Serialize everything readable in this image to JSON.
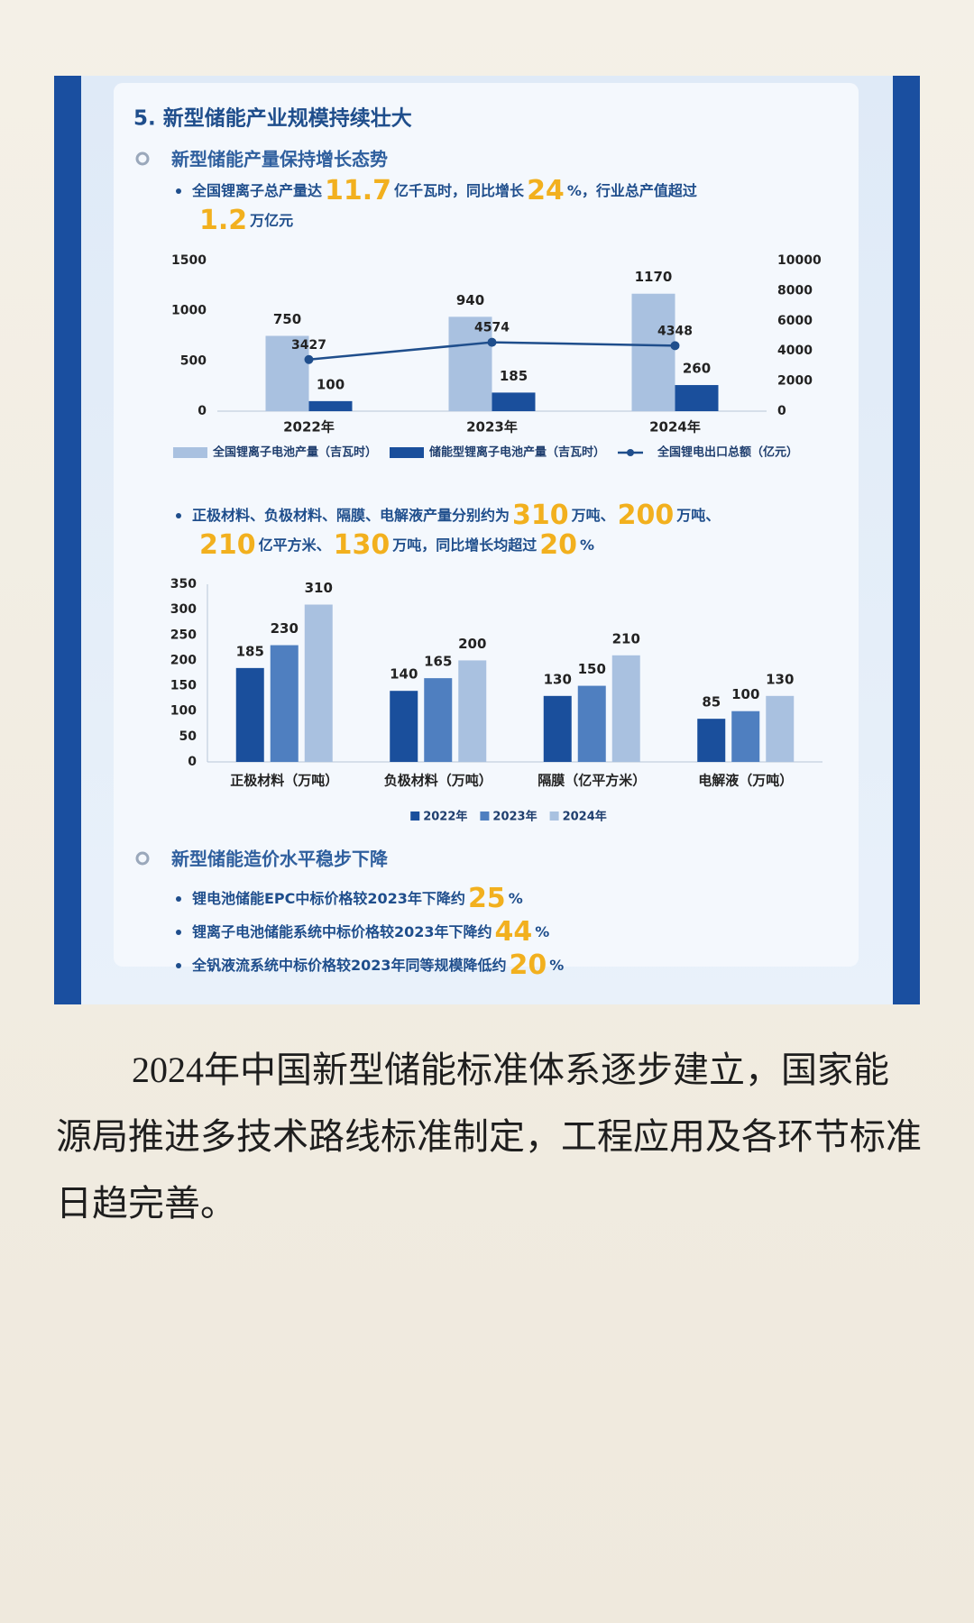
{
  "section_title": "5. 新型储能产业规模持续壮大",
  "subsection_1": "新型储能产量保持增长态势",
  "bullet_1": [
    "全国锂离子总产量达",
    "11.7",
    "亿千瓦时，同比增长",
    "24",
    "%，行业总产值超过",
    "1.2",
    "万亿元"
  ],
  "bullet_2": [
    "正极材料、负极材料、隔膜、电解液产量分别约为",
    "310",
    "万吨、",
    "200",
    "万吨、",
    "210",
    "亿平方米、",
    "130",
    "万吨，同比增长均超过",
    "20",
    "%"
  ],
  "subsection_2": "新型储能造价水平稳步下降",
  "bullets_3": [
    [
      "锂电池储能EPC中标价格较2023年下降约",
      "25",
      "%"
    ],
    [
      "锂离子电池储能系统中标价格较2023年下降约",
      "44",
      "%"
    ],
    [
      "全钒液流系统中标价格较2023年同等规模降低约",
      "20",
      "%"
    ]
  ],
  "paragraph": "2024年中国新型储能标准体系逐步建立，国家能源局推进多技术路线标准制定，工程应用及各环节标准日趋完善。",
  "chart_data": [
    {
      "type": "bar",
      "categories": [
        "2022年",
        "2023年",
        "2024年"
      ],
      "series": [
        {
          "name": "全国锂离子电池产量（吉瓦时）",
          "color": "#a9c1e0",
          "values": [
            750,
            940,
            1170
          ]
        },
        {
          "name": "储能型锂离子电池产量（吉瓦时）",
          "color": "#1a4f9c",
          "values": [
            100,
            185,
            260
          ]
        },
        {
          "name": "全国锂电出口总额（亿元）",
          "color": "#1f4e8c",
          "values": [
            3427,
            4574,
            4348
          ],
          "type": "line",
          "axis": "y2"
        }
      ],
      "ylim": [
        0,
        1500
      ],
      "yticks": [
        0,
        500,
        1000,
        1500
      ],
      "y2lim": [
        0,
        10000
      ],
      "y2ticks": [
        0,
        2000,
        4000,
        6000,
        8000,
        10000
      ],
      "legend": "bottom"
    },
    {
      "type": "bar",
      "categories": [
        "正极材料（万吨）",
        "负极材料（万吨）",
        "隔膜（亿平方米）",
        "电解液（万吨）"
      ],
      "series": [
        {
          "name": "2022年",
          "color": "#1a4f9c",
          "values": [
            185,
            140,
            130,
            85
          ]
        },
        {
          "name": "2023年",
          "color": "#4f7fc0",
          "values": [
            230,
            165,
            150,
            100
          ]
        },
        {
          "name": "2024年",
          "color": "#a9c1e0",
          "values": [
            310,
            200,
            210,
            130
          ]
        }
      ],
      "ylim": [
        0,
        350
      ],
      "yticks": [
        0,
        50,
        100,
        150,
        200,
        250,
        300,
        350
      ],
      "legend": "bottom"
    }
  ]
}
